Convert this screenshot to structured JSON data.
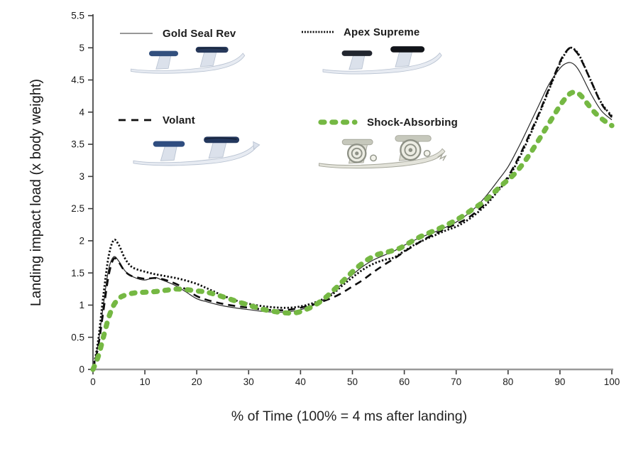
{
  "figure": {
    "x_axis_title": "% of Time (100% = 4 ms after landing)",
    "y_axis_title": "Landing impact load (x body weight)"
  },
  "legend": [
    {
      "label": "Gold Seal Rev",
      "style": "thin-solid-line"
    },
    {
      "label": "Apex Supreme",
      "style": "dotted-line"
    },
    {
      "label": "Volant",
      "style": "dashed-line"
    },
    {
      "label": "Shock-Absorbing",
      "style": "thick-green-dotted-line"
    }
  ],
  "colors": {
    "accent_green": "#75b843",
    "line_black": "#111111",
    "thin_line_gray": "#3a3a3a",
    "x_axis_gray": "#9a9a9a",
    "y_axis_gray": "#5c5c5c",
    "tick_label": "#1a1a1a"
  },
  "chart_data": {
    "type": "line",
    "title": "",
    "xlabel": "% of Time (100% = 4 ms after landing)",
    "ylabel": "Landing impact load (x body weight)",
    "xlim": [
      0,
      100
    ],
    "ylim": [
      0,
      5.5
    ],
    "xticks": [
      0,
      10,
      20,
      30,
      40,
      50,
      60,
      70,
      80,
      90,
      100
    ],
    "yticks": [
      0,
      0.5,
      1,
      1.5,
      2,
      2.5,
      3,
      3.5,
      4,
      4.5,
      5,
      5.5
    ],
    "grid": false,
    "legend_position": "inside-top-left",
    "series": [
      {
        "name": "Gold Seal Rev",
        "color": "#2a2a2a",
        "stroke_width": 1.2,
        "dash": "none",
        "linecap": "butt",
        "points": [
          [
            0,
            0
          ],
          [
            1,
            0.4
          ],
          [
            2,
            1.0
          ],
          [
            3,
            1.55
          ],
          [
            4,
            1.75
          ],
          [
            5,
            1.68
          ],
          [
            6,
            1.55
          ],
          [
            7,
            1.47
          ],
          [
            8,
            1.43
          ],
          [
            9,
            1.4
          ],
          [
            10,
            1.39
          ],
          [
            11,
            1.41
          ],
          [
            12,
            1.43
          ],
          [
            13,
            1.4
          ],
          [
            14,
            1.37
          ],
          [
            16,
            1.3
          ],
          [
            18,
            1.2
          ],
          [
            20,
            1.1
          ],
          [
            22,
            1.05
          ],
          [
            25,
            0.99
          ],
          [
            28,
            0.95
          ],
          [
            30,
            0.93
          ],
          [
            33,
            0.9
          ],
          [
            36,
            0.89
          ],
          [
            38,
            0.9
          ],
          [
            40,
            0.93
          ],
          [
            42,
            0.98
          ],
          [
            44,
            1.06
          ],
          [
            46,
            1.18
          ],
          [
            48,
            1.33
          ],
          [
            50,
            1.47
          ],
          [
            52,
            1.6
          ],
          [
            54,
            1.7
          ],
          [
            56,
            1.77
          ],
          [
            58,
            1.84
          ],
          [
            60,
            1.93
          ],
          [
            62,
            2.01
          ],
          [
            64,
            2.08
          ],
          [
            66,
            2.14
          ],
          [
            68,
            2.21
          ],
          [
            70,
            2.29
          ],
          [
            72,
            2.4
          ],
          [
            74,
            2.54
          ],
          [
            76,
            2.72
          ],
          [
            78,
            2.93
          ],
          [
            80,
            3.15
          ],
          [
            82,
            3.45
          ],
          [
            84,
            3.78
          ],
          [
            86,
            4.12
          ],
          [
            88,
            4.45
          ],
          [
            90,
            4.68
          ],
          [
            91,
            4.75
          ],
          [
            92,
            4.77
          ],
          [
            93,
            4.72
          ],
          [
            94,
            4.6
          ],
          [
            96,
            4.28
          ],
          [
            98,
            4.02
          ],
          [
            100,
            3.88
          ]
        ]
      },
      {
        "name": "Apex Supreme",
        "color": "#0d0d0d",
        "stroke_width": 2.8,
        "dash": "2.3 2.6",
        "linecap": "butt",
        "points": [
          [
            0,
            0
          ],
          [
            1,
            0.45
          ],
          [
            2,
            1.15
          ],
          [
            3,
            1.75
          ],
          [
            4,
            2.01
          ],
          [
            5,
            1.93
          ],
          [
            6,
            1.75
          ],
          [
            7,
            1.63
          ],
          [
            8,
            1.57
          ],
          [
            10,
            1.52
          ],
          [
            12,
            1.48
          ],
          [
            14,
            1.45
          ],
          [
            16,
            1.42
          ],
          [
            18,
            1.38
          ],
          [
            20,
            1.33
          ],
          [
            22,
            1.26
          ],
          [
            25,
            1.15
          ],
          [
            28,
            1.06
          ],
          [
            30,
            1.02
          ],
          [
            33,
            0.98
          ],
          [
            36,
            0.96
          ],
          [
            38,
            0.96
          ],
          [
            40,
            0.98
          ],
          [
            42,
            1.02
          ],
          [
            44,
            1.08
          ],
          [
            46,
            1.16
          ],
          [
            48,
            1.3
          ],
          [
            50,
            1.43
          ],
          [
            52,
            1.55
          ],
          [
            54,
            1.64
          ],
          [
            56,
            1.7
          ],
          [
            58,
            1.74
          ],
          [
            60,
            1.84
          ],
          [
            62,
            1.94
          ],
          [
            64,
            2.02
          ],
          [
            66,
            2.09
          ],
          [
            68,
            2.16
          ],
          [
            70,
            2.22
          ],
          [
            72,
            2.31
          ],
          [
            74,
            2.43
          ],
          [
            76,
            2.58
          ],
          [
            78,
            2.77
          ],
          [
            80,
            2.97
          ],
          [
            82,
            3.26
          ],
          [
            84,
            3.6
          ],
          [
            86,
            3.97
          ],
          [
            88,
            4.37
          ],
          [
            90,
            4.76
          ],
          [
            91,
            4.91
          ],
          [
            92,
            5.0
          ],
          [
            93,
            4.96
          ],
          [
            94,
            4.84
          ],
          [
            96,
            4.48
          ],
          [
            98,
            4.14
          ],
          [
            100,
            3.94
          ]
        ]
      },
      {
        "name": "Volant",
        "color": "#0d0d0d",
        "stroke_width": 2.6,
        "dash": "10 7",
        "linecap": "butt",
        "points": [
          [
            0,
            0
          ],
          [
            1,
            0.35
          ],
          [
            2,
            0.9
          ],
          [
            3,
            1.45
          ],
          [
            4,
            1.72
          ],
          [
            5,
            1.66
          ],
          [
            6,
            1.54
          ],
          [
            7,
            1.47
          ],
          [
            8,
            1.44
          ],
          [
            10,
            1.41
          ],
          [
            12,
            1.42
          ],
          [
            14,
            1.39
          ],
          [
            16,
            1.33
          ],
          [
            18,
            1.24
          ],
          [
            20,
            1.14
          ],
          [
            22,
            1.08
          ],
          [
            25,
            1.02
          ],
          [
            28,
            0.98
          ],
          [
            30,
            0.96
          ],
          [
            33,
            0.93
          ],
          [
            36,
            0.92
          ],
          [
            38,
            0.93
          ],
          [
            40,
            0.96
          ],
          [
            42,
            1.0
          ],
          [
            44,
            1.05
          ],
          [
            46,
            1.11
          ],
          [
            48,
            1.19
          ],
          [
            50,
            1.29
          ],
          [
            52,
            1.39
          ],
          [
            54,
            1.51
          ],
          [
            56,
            1.62
          ],
          [
            58,
            1.72
          ],
          [
            60,
            1.83
          ],
          [
            62,
            1.93
          ],
          [
            64,
            2.03
          ],
          [
            66,
            2.11
          ],
          [
            68,
            2.19
          ],
          [
            70,
            2.26
          ],
          [
            72,
            2.34
          ],
          [
            74,
            2.46
          ],
          [
            76,
            2.61
          ],
          [
            78,
            2.79
          ],
          [
            80,
            3.0
          ],
          [
            82,
            3.29
          ],
          [
            84,
            3.63
          ],
          [
            86,
            3.99
          ],
          [
            88,
            4.39
          ],
          [
            90,
            4.78
          ],
          [
            91,
            4.92
          ],
          [
            92,
            5.0
          ],
          [
            93,
            4.95
          ],
          [
            94,
            4.83
          ],
          [
            96,
            4.48
          ],
          [
            98,
            4.13
          ],
          [
            100,
            3.92
          ]
        ]
      },
      {
        "name": "Shock-Absorbing",
        "color": "#75b843",
        "stroke_width": 7.2,
        "dash": "5 10.8",
        "linecap": "round",
        "points": [
          [
            0,
            0
          ],
          [
            1,
            0.2
          ],
          [
            2,
            0.5
          ],
          [
            3,
            0.8
          ],
          [
            4,
            1.0
          ],
          [
            5,
            1.1
          ],
          [
            6,
            1.15
          ],
          [
            8,
            1.19
          ],
          [
            10,
            1.2
          ],
          [
            12,
            1.21
          ],
          [
            14,
            1.23
          ],
          [
            16,
            1.25
          ],
          [
            18,
            1.24
          ],
          [
            20,
            1.22
          ],
          [
            22,
            1.2
          ],
          [
            25,
            1.13
          ],
          [
            28,
            1.05
          ],
          [
            30,
            1.0
          ],
          [
            33,
            0.93
          ],
          [
            35,
            0.9
          ],
          [
            37,
            0.88
          ],
          [
            39,
            0.88
          ],
          [
            41,
            0.93
          ],
          [
            43,
            1.01
          ],
          [
            45,
            1.13
          ],
          [
            47,
            1.28
          ],
          [
            49,
            1.44
          ],
          [
            51,
            1.59
          ],
          [
            53,
            1.71
          ],
          [
            55,
            1.79
          ],
          [
            57,
            1.83
          ],
          [
            59,
            1.88
          ],
          [
            61,
            1.97
          ],
          [
            63,
            2.06
          ],
          [
            65,
            2.13
          ],
          [
            67,
            2.2
          ],
          [
            69,
            2.28
          ],
          [
            71,
            2.37
          ],
          [
            73,
            2.48
          ],
          [
            75,
            2.59
          ],
          [
            77,
            2.73
          ],
          [
            79,
            2.88
          ],
          [
            81,
            3.02
          ],
          [
            83,
            3.21
          ],
          [
            85,
            3.45
          ],
          [
            87,
            3.71
          ],
          [
            89,
            3.97
          ],
          [
            90,
            4.1
          ],
          [
            91,
            4.21
          ],
          [
            92,
            4.29
          ],
          [
            93,
            4.31
          ],
          [
            94,
            4.26
          ],
          [
            95,
            4.16
          ],
          [
            96,
            4.06
          ],
          [
            97,
            3.97
          ],
          [
            98,
            3.9
          ],
          [
            99,
            3.84
          ],
          [
            100,
            3.79
          ]
        ]
      }
    ]
  }
}
